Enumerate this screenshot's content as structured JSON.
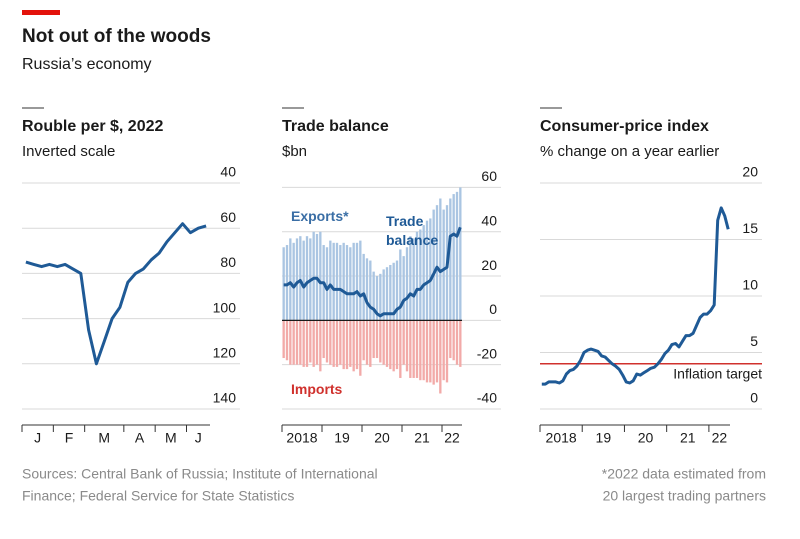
{
  "header": {
    "title": "Not out of the woods",
    "subtitle": "Russia’s economy"
  },
  "chart_data": [
    {
      "type": "line",
      "title": "Rouble per $, 2022",
      "subtitle": "Inverted scale",
      "categories": [
        "J",
        null,
        null,
        null,
        "F",
        null,
        null,
        null,
        "M",
        null,
        null,
        null,
        null,
        "A",
        null,
        null,
        null,
        "M",
        null,
        null,
        null,
        "J",
        null,
        null
      ],
      "series": [
        {
          "name": null,
          "color": "#1f5a96",
          "values": [
            75,
            76,
            77,
            76,
            77,
            76,
            78,
            80,
            105,
            120,
            110,
            100,
            95,
            84,
            80,
            78,
            74,
            71,
            66,
            62,
            58,
            62,
            60,
            59
          ]
        }
      ],
      "ylim": [
        40,
        140
      ],
      "y_inverted": true,
      "yticks": [
        40,
        60,
        80,
        100,
        120,
        140
      ],
      "grid": true
    },
    {
      "type": "bar",
      "title": "Trade balance",
      "subtitle": "$bn",
      "categories": [
        "2018",
        null,
        null,
        null,
        null,
        null,
        null,
        null,
        null,
        null,
        null,
        null,
        "19",
        null,
        null,
        null,
        null,
        null,
        null,
        null,
        null,
        null,
        null,
        null,
        "20",
        null,
        null,
        null,
        null,
        null,
        null,
        null,
        null,
        null,
        null,
        null,
        "21",
        null,
        null,
        null,
        null,
        null,
        null,
        null,
        null,
        null,
        null,
        null,
        "22",
        null,
        null,
        null,
        null,
        null
      ],
      "series": [
        {
          "name": "Exports*",
          "type": "bar",
          "color": "#aac5e2",
          "label_color": "#3a6ea5",
          "values": [
            33,
            34,
            37,
            35,
            37,
            38,
            36,
            38,
            37,
            40,
            39,
            40,
            34,
            33,
            36,
            35,
            35,
            34,
            35,
            34,
            33,
            35,
            35,
            36,
            30,
            28,
            27,
            22,
            20,
            21,
            23,
            24,
            25,
            26,
            27,
            32,
            29,
            33,
            38,
            37,
            40,
            41,
            43,
            45,
            46,
            50,
            52,
            55,
            50,
            52,
            55,
            57,
            58,
            60
          ]
        },
        {
          "name": "Imports",
          "type": "bar",
          "color": "#f2aaa8",
          "label_color": "#d0312d",
          "values": [
            -17,
            -18,
            -20,
            -20,
            -20,
            -20,
            -21,
            -21,
            -19,
            -21,
            -20,
            -23,
            -17,
            -19,
            -20,
            -21,
            -21,
            -20,
            -22,
            -22,
            -21,
            -23,
            -22,
            -25,
            -18,
            -20,
            -21,
            -17,
            -17,
            -19,
            -20,
            -21,
            -22,
            -23,
            -22,
            -26,
            -20,
            -23,
            -26,
            -26,
            -26,
            -27,
            -27,
            -28,
            -28,
            -29,
            -28,
            -33,
            -27,
            -28,
            -17,
            -18,
            -20,
            -21
          ]
        },
        {
          "name": "Trade balance",
          "type": "line",
          "color": "#1f5a96",
          "label_color": "#1f5a96",
          "values": [
            16,
            16,
            17,
            15,
            17,
            18,
            15,
            17,
            18,
            19,
            19,
            17,
            17,
            14,
            16,
            14,
            14,
            14,
            13,
            12,
            12,
            12,
            13,
            11,
            12,
            8,
            6,
            5,
            3,
            2,
            3,
            3,
            3,
            3,
            5,
            6,
            9,
            10,
            12,
            11,
            14,
            14,
            16,
            17,
            18,
            21,
            24,
            22,
            23,
            24,
            38,
            39,
            38,
            42
          ]
        }
      ],
      "ylim": [
        -40,
        62
      ],
      "yticks": [
        60,
        40,
        20,
        0,
        -20,
        -40
      ],
      "grid": true
    },
    {
      "type": "line",
      "title": "Consumer-price index",
      "subtitle": "% change on a year earlier",
      "categories": [
        "2018",
        null,
        null,
        null,
        null,
        null,
        null,
        null,
        null,
        null,
        null,
        null,
        "19",
        null,
        null,
        null,
        null,
        null,
        null,
        null,
        null,
        null,
        null,
        null,
        "20",
        null,
        null,
        null,
        null,
        null,
        null,
        null,
        null,
        null,
        null,
        null,
        "21",
        null,
        null,
        null,
        null,
        null,
        null,
        null,
        null,
        null,
        null,
        null,
        "22",
        null,
        null,
        null,
        null,
        null
      ],
      "series": [
        {
          "name": null,
          "color": "#1f5a96",
          "values": [
            2.2,
            2.2,
            2.4,
            2.4,
            2.4,
            2.3,
            2.5,
            3.1,
            3.4,
            3.5,
            3.8,
            4.3,
            5.0,
            5.2,
            5.3,
            5.2,
            5.1,
            4.7,
            4.6,
            4.3,
            4.0,
            3.8,
            3.5,
            3.0,
            2.4,
            2.3,
            2.5,
            3.1,
            3.0,
            3.2,
            3.4,
            3.6,
            3.7,
            4.0,
            4.4,
            4.9,
            5.2,
            5.7,
            5.8,
            5.5,
            6.0,
            6.5,
            6.5,
            6.7,
            7.4,
            8.1,
            8.4,
            8.4,
            8.7,
            9.2,
            16.7,
            17.8,
            17.1,
            15.9
          ]
        }
      ],
      "target": {
        "value": 4,
        "label": "Inflation target",
        "color": "#d0312d"
      },
      "ylim": [
        0,
        20
      ],
      "yticks": [
        0,
        5,
        10,
        15,
        20
      ],
      "grid": true
    }
  ],
  "footer": {
    "sources": [
      "Sources: Central Bank of Russia; Institute of International",
      "Finance; Federal Service for State Statistics"
    ],
    "note": [
      "*2022 data estimated from",
      "20 largest trading partners"
    ]
  }
}
